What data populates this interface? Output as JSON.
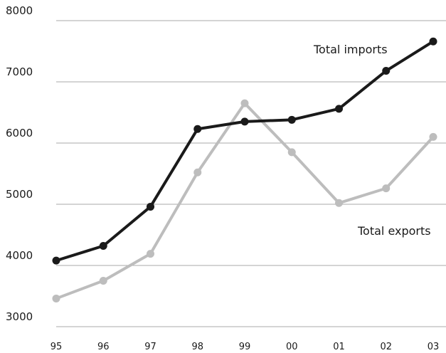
{
  "chart_data": {
    "type": "line",
    "categories": [
      "95",
      "96",
      "97",
      "98",
      "99",
      "00",
      "01",
      "02",
      "03"
    ],
    "series": [
      {
        "name": "Total imports",
        "color": "#1a1a1a",
        "values": [
          4080,
          4320,
          4960,
          6230,
          6350,
          6380,
          6560,
          7180,
          7660
        ]
      },
      {
        "name": "Total exports",
        "color": "#bdbdbd",
        "values": [
          3460,
          3750,
          4190,
          5520,
          6650,
          5850,
          5020,
          5260,
          6100
        ]
      }
    ],
    "yticks": [
      "3000",
      "4000",
      "5000",
      "6000",
      "7000",
      "8000"
    ],
    "ylim": [
      3000,
      8000
    ],
    "grid": "horizontal",
    "legend": "direct labels"
  }
}
